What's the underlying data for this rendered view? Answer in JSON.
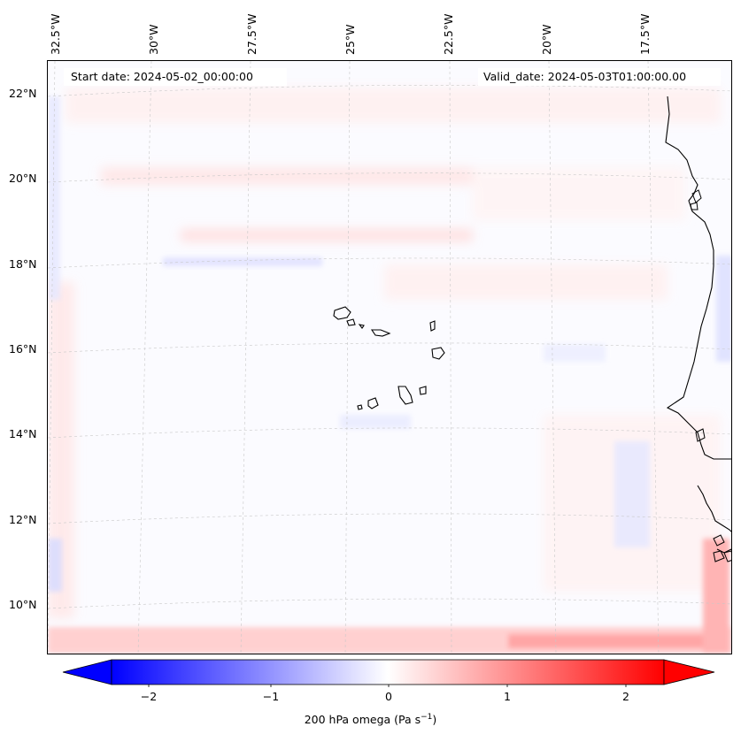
{
  "header": {
    "start_date": "Start date: 2024-05-02_00:00:00",
    "valid_date": "Valid_date: 2024-05-03T01:00:00.00"
  },
  "axes": {
    "lon_labels": [
      "32.5°W",
      "30°W",
      "27.5°W",
      "25°W",
      "22.5°W",
      "20°W",
      "17.5°W"
    ],
    "lat_labels": [
      "22°N",
      "20°N",
      "18°N",
      "16°N",
      "14°N",
      "12°N",
      "10°N"
    ]
  },
  "colorbar": {
    "label": "200 hPa omega (Pa s",
    "label_sup": "−1",
    "label_end": ")",
    "ticks": [
      "−2",
      "−1",
      "0",
      "1",
      "2"
    ],
    "min": -2.6,
    "max": 2.6,
    "low_color": "#0000ff",
    "high_color": "#ff0000"
  },
  "map": {
    "field": "200 hPa omega",
    "coastline_color": "#000000",
    "gridline_color": "#c8c8c8"
  }
}
